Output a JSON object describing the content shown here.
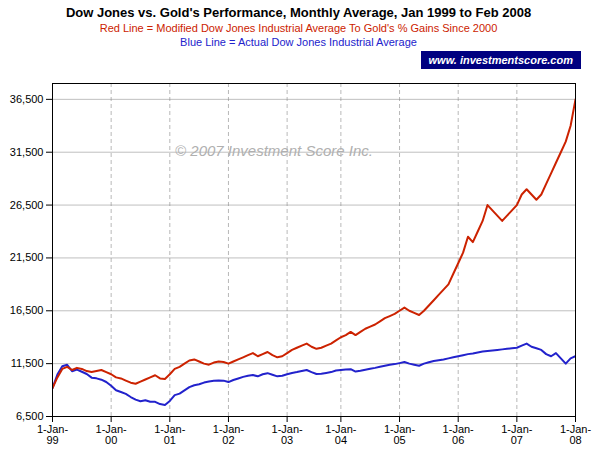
{
  "chart_data": {
    "type": "line",
    "title": "Dow Jones vs. Gold's Performance, Monthly Average, Jan 1999 to Feb 2008",
    "subtitle": [
      "Red Line = Modified Dow Jones Industrial Average To Gold's % Gains Since 2000",
      "Blue Line = Actual Dow Jones Industrial Average"
    ],
    "annotations": [
      "© 2007 Investment Score Inc.",
      "www. investmentscore.com"
    ],
    "categories": [
      "1-Jan-\n99",
      null,
      null,
      null,
      null,
      null,
      null,
      null,
      null,
      null,
      null,
      null,
      "1-Jan-\n00",
      null,
      null,
      null,
      null,
      null,
      null,
      null,
      null,
      null,
      null,
      null,
      "1-Jan-\n01",
      null,
      null,
      null,
      null,
      null,
      null,
      null,
      null,
      null,
      null,
      null,
      "1-Jan-\n02",
      null,
      null,
      null,
      null,
      null,
      null,
      null,
      null,
      null,
      null,
      null,
      "1-Jan-\n03",
      null,
      null,
      null,
      null,
      null,
      null,
      null,
      null,
      null,
      null,
      "1-Jan-\n04",
      null,
      null,
      null,
      null,
      null,
      null,
      null,
      null,
      null,
      null,
      null,
      "1-Jan-\n05",
      null,
      null,
      null,
      null,
      null,
      null,
      null,
      null,
      null,
      null,
      null,
      "1-Jan-\n06",
      null,
      null,
      null,
      null,
      null,
      null,
      null,
      null,
      null,
      null,
      null,
      "1-Jan-\n07",
      null,
      null,
      null,
      null,
      null,
      null,
      null,
      null,
      null,
      null,
      null,
      "1-Jan-\n08"
    ],
    "series": [
      {
        "name": "Blue Line",
        "color": "#2222cc",
        "values": [
          9184,
          10464,
          11253,
          11394,
          10787,
          10941,
          10734,
          10522,
          10175,
          10108,
          9984,
          9763,
          9401,
          8978,
          8814,
          8638,
          8342,
          8099,
          7948,
          8043,
          7891,
          7888,
          7673,
          7591,
          7972,
          8522,
          8663,
          8967,
          9275,
          9459,
          9545,
          9707,
          9809,
          9876,
          9900,
          9890,
          9756,
          9950,
          10100,
          10250,
          10350,
          10420,
          10300,
          10500,
          10600,
          10450,
          10300,
          10350,
          10500,
          10621,
          10700,
          10800,
          10900,
          10700,
          10520,
          10550,
          10620,
          10700,
          10850,
          10900,
          10950,
          10980,
          10750,
          10820,
          10914,
          11012,
          11100,
          11200,
          11300,
          11400,
          11456,
          11550,
          11650,
          11500,
          11400,
          11300,
          11500,
          11630,
          11750,
          11820,
          11900,
          12000,
          12100,
          12200,
          12300,
          12400,
          12459,
          12560,
          12650,
          12700,
          12750,
          12800,
          12850,
          12900,
          12950,
          13000,
          13200,
          13400,
          13100,
          12950,
          12800,
          12400,
          12200,
          12500,
          12000,
          11500,
          12000,
          12200
        ]
      },
      {
        "name": "Red Line",
        "color": "#cc2200",
        "values": [
          9184,
          10200,
          11000,
          11200,
          10900,
          11100,
          11000,
          10800,
          10700,
          10800,
          10900,
          10700,
          10500,
          10200,
          10100,
          9900,
          9700,
          9600,
          9800,
          10000,
          10200,
          10400,
          10100,
          10050,
          10500,
          11000,
          11200,
          11500,
          11800,
          11900,
          11700,
          11500,
          11400,
          11600,
          11700,
          11650,
          11500,
          11700,
          11900,
          12100,
          12300,
          12500,
          12200,
          12400,
          12600,
          12300,
          12100,
          12200,
          12500,
          12800,
          13000,
          13200,
          13400,
          13100,
          12900,
          13000,
          13200,
          13400,
          13700,
          14000,
          14200,
          14500,
          14200,
          14500,
          14800,
          15000,
          15200,
          15500,
          15800,
          16000,
          16200,
          16500,
          16800,
          16500,
          16300,
          16100,
          16500,
          17000,
          17500,
          18000,
          18500,
          19000,
          20000,
          21000,
          22000,
          23500,
          23000,
          24000,
          25000,
          26500,
          26000,
          25500,
          25000,
          25500,
          26000,
          26500,
          27500,
          28000,
          27500,
          27000,
          27500,
          28500,
          29500,
          30500,
          31500,
          32500,
          34000,
          36500
        ]
      }
    ],
    "ylim": [
      6500,
      38000
    ],
    "yticks": [
      {
        "value": 6500,
        "label": "6,500"
      },
      {
        "value": 11500,
        "label": "11,500"
      },
      {
        "value": 16500,
        "label": "16,500"
      },
      {
        "value": 21500,
        "label": "21,500"
      },
      {
        "value": 26500,
        "label": "26,500"
      },
      {
        "value": 31500,
        "label": "31,500"
      },
      {
        "value": 36500,
        "label": "36,500"
      }
    ],
    "grid": true
  }
}
